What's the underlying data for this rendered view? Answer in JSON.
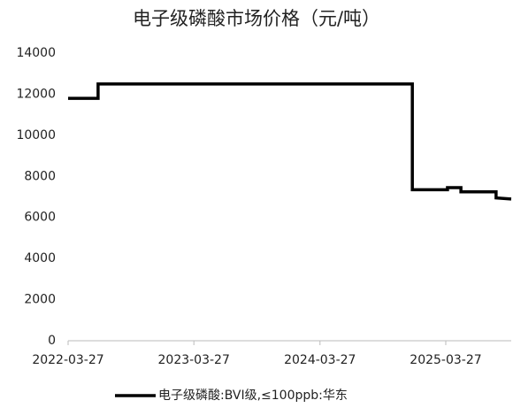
{
  "chart_data": {
    "type": "line",
    "title": "电子级磷酸市场价格（元/吨）",
    "x": [
      "2022-03-27",
      "2022-06-22",
      "2022-06-22",
      "2024-12-20",
      "2024-12-20",
      "2025-04-01",
      "2025-04-01",
      "2025-05-10",
      "2025-05-10",
      "2025-08-20",
      "2025-08-20",
      "2025-10-03"
    ],
    "series": [
      {
        "name": "电子级磷酸:BVI级,≤100ppb:华东",
        "color": "#000000",
        "values": [
          11800,
          11800,
          12500,
          12500,
          7350,
          7350,
          7450,
          7450,
          7250,
          7250,
          6950,
          6900
        ]
      }
    ],
    "xlim": [
      "2022-03-27",
      "2025-10-03"
    ],
    "xticks": [
      "2022-03-27",
      "2023-03-27",
      "2024-03-27",
      "2025-03-27"
    ],
    "ylim": [
      0,
      14000
    ],
    "yticks": [
      0,
      2000,
      4000,
      6000,
      8000,
      10000,
      12000,
      14000
    ],
    "legend": "bottom"
  }
}
